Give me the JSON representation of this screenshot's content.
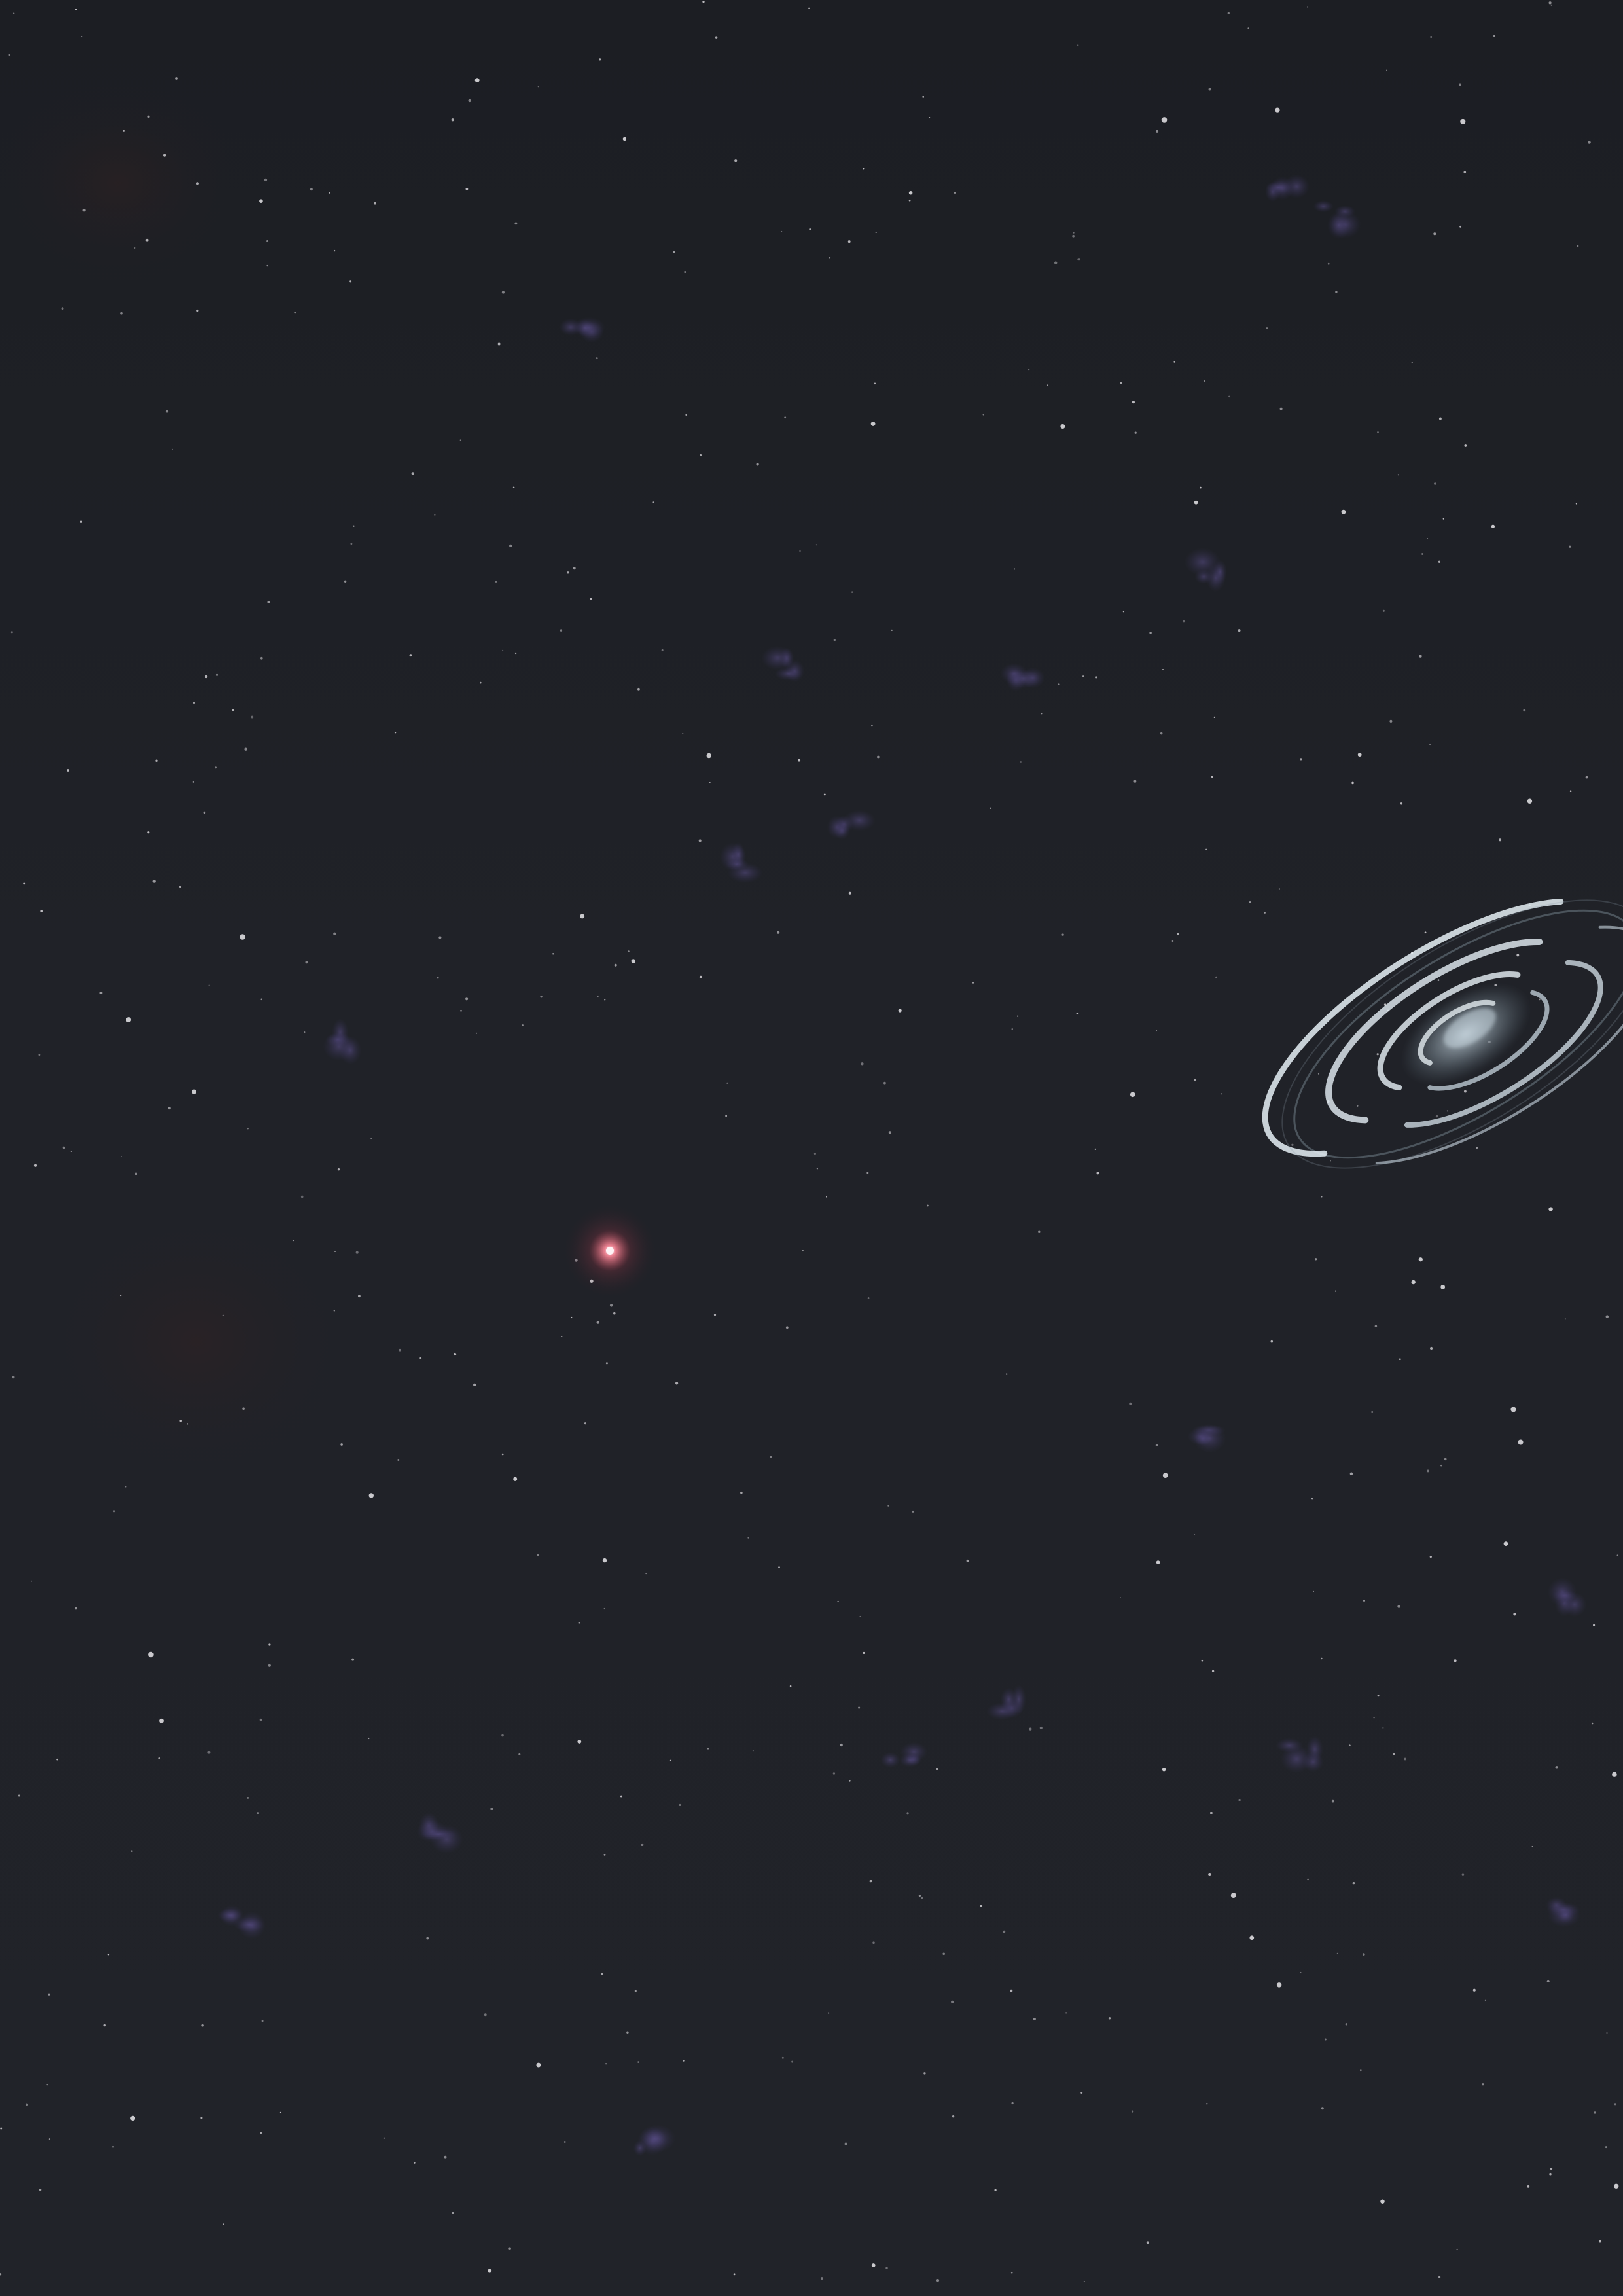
{
  "scene": {
    "description_name": "starfield",
    "colors": {
      "background_top": "#1c1e23",
      "background_bottom": "#212329",
      "star": "#e8e6ea",
      "nebula": "#4a4270",
      "red_star": "#ff6a7a",
      "galaxy_arm": "#d9e6ef",
      "galaxy_core": "#b8c8d4"
    },
    "icons": [
      "red-star-icon",
      "spiral-galaxy-icon"
    ]
  }
}
